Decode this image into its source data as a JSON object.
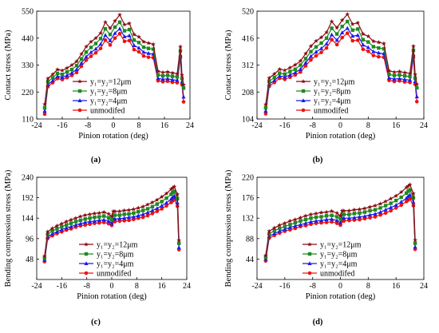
{
  "panel_labels": [
    "(a)",
    "(b)",
    "(c)",
    "(d)"
  ],
  "legend": [
    {
      "label": "y₁=y₂=12μm",
      "color": "#8b0a14",
      "marker": "star"
    },
    {
      "label": "y₁=y₂=8μm",
      "color": "#1f8a1f",
      "marker": "square"
    },
    {
      "label": "y₁=y₂=4μm",
      "color": "#1a1aee",
      "marker": "triangle"
    },
    {
      "label": "unmodifed",
      "color": "#ee1111",
      "marker": "circle"
    }
  ],
  "chart_data": [
    {
      "panel": "(a)",
      "type": "line",
      "xlabel": "Pinion rotation (deg)",
      "ylabel": "Contact stress (MPa)",
      "xlim": [
        -24,
        24
      ],
      "ylim": [
        110,
        550
      ],
      "xticks": [
        -24,
        -16,
        -8,
        0,
        8,
        16,
        24
      ],
      "yticks": [
        110,
        220,
        330,
        440,
        550
      ],
      "x": [
        -21.5,
        -20.5,
        -19,
        -17.5,
        -16,
        -14.5,
        -13,
        -11.5,
        -10,
        -8.5,
        -7,
        -5.5,
        -4,
        -2.5,
        -1,
        0.5,
        2,
        3.5,
        5,
        6.5,
        8,
        9.5,
        11,
        12.5,
        14,
        15.5,
        17,
        18.5,
        20,
        21,
        21.5,
        22
      ],
      "series": [
        {
          "name": "y₁=y₂=12μm",
          "values": [
            170,
            275,
            292,
            312,
            308,
            318,
            330,
            345,
            375,
            405,
            425,
            440,
            460,
            505,
            480,
            510,
            535,
            495,
            500,
            455,
            445,
            425,
            420,
            415,
            305,
            300,
            302,
            298,
            295,
            405,
            290,
            250
          ]
        },
        {
          "name": "y₁=y₂=8μm",
          "values": [
            155,
            262,
            278,
            296,
            292,
            302,
            312,
            328,
            355,
            383,
            402,
            418,
            438,
            478,
            455,
            485,
            505,
            470,
            475,
            432,
            422,
            403,
            398,
            395,
            290,
            286,
            288,
            284,
            282,
            388,
            275,
            236
          ]
        },
        {
          "name": "y₁=y₂=4μm",
          "values": [
            142,
            250,
            266,
            284,
            280,
            288,
            298,
            312,
            338,
            364,
            382,
            396,
            415,
            452,
            430,
            460,
            478,
            446,
            450,
            410,
            400,
            383,
            378,
            375,
            276,
            272,
            274,
            270,
            268,
            372,
            262,
            200
          ]
        },
        {
          "name": "unmodifed",
          "values": [
            130,
            242,
            258,
            275,
            271,
            279,
            288,
            300,
            325,
            350,
            366,
            380,
            398,
            432,
            412,
            440,
            458,
            427,
            430,
            393,
            384,
            367,
            362,
            360,
            266,
            262,
            264,
            260,
            258,
            360,
            250,
            180
          ]
        }
      ]
    },
    {
      "panel": "(b)",
      "type": "line",
      "xlabel": "Pinion rotation (deg)",
      "ylabel": "Contact stress (MPa)",
      "xlim": [
        -24,
        24
      ],
      "ylim": [
        104,
        520
      ],
      "xticks": [
        -24,
        -16,
        -8,
        0,
        8,
        16,
        24
      ],
      "yticks": [
        104,
        208,
        312,
        416,
        520
      ],
      "x": [
        -21.5,
        -20.5,
        -19,
        -17.5,
        -16,
        -14.5,
        -13,
        -11.5,
        -10,
        -8.5,
        -7,
        -5.5,
        -4,
        -2.5,
        -1,
        0.5,
        2,
        3.5,
        5,
        6.5,
        8,
        9.5,
        11,
        12.5,
        14,
        15.5,
        17,
        18.5,
        20,
        21,
        21.5,
        22
      ],
      "series": [
        {
          "name": "y₁=y₂=12μm",
          "values": [
            160,
            262,
            278,
            296,
            292,
            302,
            313,
            328,
            356,
            385,
            405,
            419,
            438,
            480,
            456,
            485,
            508,
            470,
            475,
            432,
            423,
            404,
            400,
            395,
            290,
            285,
            287,
            283,
            280,
            385,
            276,
            238
          ]
        },
        {
          "name": "y₁=y₂=8μm",
          "values": [
            147,
            249,
            264,
            281,
            277,
            287,
            296,
            312,
            337,
            364,
            382,
            397,
            416,
            454,
            432,
            461,
            480,
            447,
            451,
            410,
            401,
            383,
            378,
            375,
            276,
            272,
            274,
            270,
            268,
            369,
            261,
            224
          ]
        },
        {
          "name": "y₁=y₂=4μm",
          "values": [
            135,
            238,
            253,
            270,
            266,
            274,
            283,
            296,
            321,
            346,
            363,
            376,
            394,
            429,
            408,
            437,
            454,
            424,
            427,
            390,
            380,
            364,
            359,
            356,
            262,
            258,
            260,
            256,
            254,
            353,
            249,
            190
          ]
        },
        {
          "name": "unmodifed",
          "values": [
            124,
            230,
            245,
            261,
            257,
            265,
            274,
            285,
            309,
            332,
            348,
            361,
            378,
            410,
            391,
            418,
            435,
            406,
            408,
            373,
            365,
            349,
            344,
            342,
            253,
            249,
            251,
            247,
            245,
            342,
            238,
            171
          ]
        }
      ]
    },
    {
      "panel": "(c)",
      "type": "line",
      "xlabel": "Pinion rotation (deg)",
      "ylabel": "Bending compression stress (MPa)",
      "xlim": [
        -24,
        24
      ],
      "ylim": [
        0,
        240
      ],
      "xticks": [
        -24,
        -16,
        -8,
        0,
        8,
        16,
        24
      ],
      "yticks": [
        48,
        96,
        144,
        192,
        240
      ],
      "x": [
        -21.5,
        -20.5,
        -19,
        -17.5,
        -16,
        -14.5,
        -13,
        -11.5,
        -10,
        -8.5,
        -7,
        -5.5,
        -4,
        -2.5,
        -1,
        0,
        0.5,
        1,
        2.5,
        4,
        5.5,
        7,
        8.5,
        10,
        11.5,
        13,
        14.5,
        16,
        17.5,
        19,
        19.5,
        20,
        21,
        21.5
      ],
      "series": [
        {
          "name": "y₁=y₂=12μm",
          "values": [
            55,
            112,
            120,
            126,
            131,
            136,
            140,
            144,
            148,
            151,
            153,
            155,
            156,
            158,
            154,
            148,
            160,
            160,
            160,
            162,
            163,
            165,
            168,
            171,
            176,
            181,
            187,
            194,
            202,
            212,
            215,
            218,
            200,
            92
          ]
        },
        {
          "name": "y₁=y₂=8μm",
          "values": [
            50,
            106,
            114,
            119,
            124,
            128,
            132,
            136,
            139,
            142,
            144,
            146,
            147,
            149,
            145,
            140,
            151,
            151,
            151,
            153,
            154,
            156,
            159,
            162,
            166,
            171,
            177,
            183,
            191,
            200,
            204,
            207,
            190,
            85
          ]
        },
        {
          "name": "y₁=y₂=4μm",
          "values": [
            46,
            100,
            107,
            112,
            117,
            121,
            124,
            128,
            131,
            134,
            136,
            137,
            139,
            140,
            137,
            132,
            142,
            142,
            143,
            144,
            146,
            147,
            150,
            153,
            157,
            162,
            167,
            173,
            180,
            189,
            193,
            196,
            180,
            75
          ]
        },
        {
          "name": "unmodifed",
          "values": [
            42,
            96,
            103,
            108,
            112,
            116,
            119,
            123,
            126,
            128,
            130,
            132,
            133,
            134,
            131,
            127,
            136,
            136,
            137,
            138,
            139,
            141,
            144,
            146,
            150,
            155,
            160,
            166,
            173,
            181,
            185,
            188,
            172,
            70
          ]
        }
      ]
    },
    {
      "panel": "(d)",
      "type": "line",
      "xlabel": "Pinion rotation (deg)",
      "ylabel": "Bending compression stress (MPa)",
      "xlim": [
        -24,
        24
      ],
      "ylim": [
        0,
        220
      ],
      "xticks": [
        -24,
        -16,
        -8,
        0,
        8,
        16,
        24
      ],
      "yticks": [
        44,
        88,
        132,
        176,
        220
      ],
      "x": [
        -21.5,
        -20.5,
        -19,
        -17.5,
        -16,
        -14.5,
        -13,
        -11.5,
        -10,
        -8.5,
        -7,
        -5.5,
        -4,
        -2.5,
        -1,
        0,
        0.5,
        1,
        2.5,
        4,
        5.5,
        7,
        8.5,
        10,
        11.5,
        13,
        14.5,
        16,
        17.5,
        19,
        19.5,
        20,
        21,
        21.5
      ],
      "series": [
        {
          "name": "y₁=y₂=12μm",
          "values": [
            52,
            104,
            111,
            117,
            121,
            126,
            129,
            133,
            137,
            140,
            142,
            144,
            145,
            147,
            143,
            137,
            148,
            148,
            148,
            150,
            151,
            153,
            156,
            159,
            163,
            168,
            174,
            180,
            188,
            198,
            201,
            204,
            185,
            85
          ]
        },
        {
          "name": "y₁=y₂=8μm",
          "values": [
            48,
            98,
            105,
            110,
            114,
            118,
            122,
            126,
            129,
            132,
            134,
            135,
            137,
            138,
            135,
            130,
            140,
            140,
            140,
            142,
            143,
            145,
            148,
            150,
            154,
            159,
            164,
            170,
            177,
            186,
            190,
            193,
            176,
            78
          ]
        },
        {
          "name": "y₁=y₂=4μm",
          "values": [
            44,
            93,
            99,
            104,
            108,
            112,
            115,
            118,
            121,
            124,
            126,
            127,
            129,
            130,
            127,
            122,
            132,
            132,
            132,
            133,
            135,
            136,
            139,
            141,
            145,
            150,
            155,
            160,
            167,
            175,
            179,
            182,
            166,
            70
          ]
        },
        {
          "name": "unmodifed",
          "values": [
            40,
            89,
            95,
            100,
            104,
            107,
            110,
            114,
            116,
            119,
            121,
            122,
            123,
            124,
            121,
            117,
            126,
            126,
            127,
            128,
            129,
            131,
            133,
            135,
            139,
            143,
            148,
            154,
            160,
            168,
            171,
            174,
            159,
            65
          ]
        }
      ]
    }
  ]
}
